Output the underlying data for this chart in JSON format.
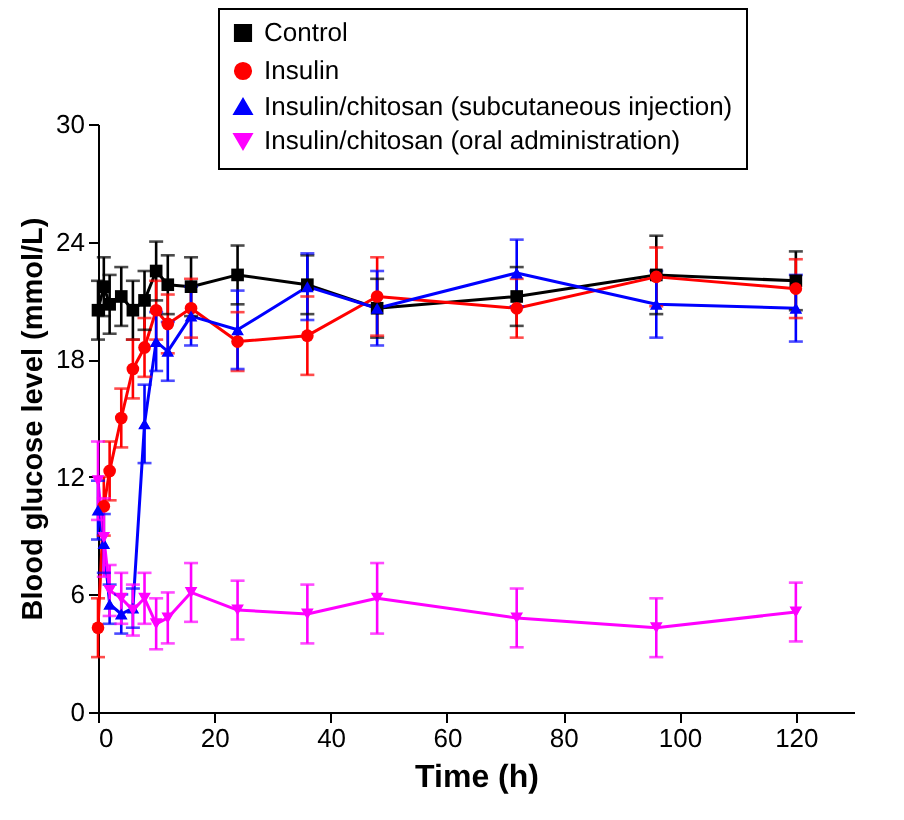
{
  "chart_data": {
    "type": "line",
    "xlabel": "Time (h)",
    "ylabel": "Blood glucose level (mmol/L)",
    "x": [
      0,
      1,
      2,
      4,
      6,
      8,
      10,
      12,
      16,
      24,
      36,
      48,
      72,
      96,
      120
    ],
    "xlim": [
      0,
      130
    ],
    "xticks": [
      0,
      20,
      40,
      60,
      80,
      100,
      120
    ],
    "ylim": [
      0,
      30
    ],
    "yticks": [
      0,
      6,
      12,
      18,
      24,
      30
    ],
    "grid": false,
    "legend": "top right",
    "line_style": "solid",
    "series": [
      {
        "name": "Control",
        "color": "#000000",
        "marker": "square",
        "values": [
          20.5,
          21.7,
          20.8,
          21.2,
          20.5,
          21.0,
          22.5,
          21.8,
          21.7,
          22.3,
          21.8,
          20.6,
          21.2,
          22.3,
          22.0
        ],
        "errors": [
          1.5,
          1.5,
          1.5,
          1.5,
          1.5,
          1.5,
          1.5,
          1.5,
          1.5,
          1.5,
          1.5,
          1.5,
          1.5,
          2,
          1.5
        ]
      },
      {
        "name": "Insulin",
        "color": "#ff0000",
        "marker": "circle",
        "values": [
          4.3,
          10.5,
          12.3,
          15.0,
          17.5,
          18.6,
          20.5,
          19.8,
          20.6,
          18.9,
          19.2,
          21.2,
          20.6,
          22.2,
          21.6
        ],
        "errors": [
          1.5,
          1.5,
          1.5,
          1.5,
          1.5,
          1.5,
          1.5,
          1.5,
          1.5,
          1.5,
          2,
          2,
          1.5,
          1.5,
          1.5
        ]
      },
      {
        "name": "Insulin/chitosan (subcutaneous injection)",
        "color": "#0000ff",
        "marker": "triangle",
        "values": [
          10.3,
          8.6,
          5.5,
          5.0,
          5.3,
          14.7,
          18.9,
          18.4,
          20.2,
          19.5,
          21.7,
          20.6,
          22.4,
          20.8,
          20.6
        ],
        "errors": [
          1.5,
          1.5,
          1,
          1,
          1,
          2,
          1.5,
          1.5,
          1.5,
          2,
          1.7,
          1.9,
          1.7,
          1.7,
          1.7
        ]
      },
      {
        "name": "Insulin/chitosan (oral administration)",
        "color": "#ff00ff",
        "marker": "triangle-down",
        "values": [
          11.8,
          8.9,
          6.2,
          5.8,
          5.2,
          5.8,
          4.5,
          4.8,
          6.1,
          5.2,
          5.0,
          5.8,
          4.8,
          4.3,
          5.1
        ],
        "errors": [
          2,
          2,
          1.3,
          1.3,
          1.3,
          1.3,
          1.3,
          1.3,
          1.5,
          1.5,
          1.5,
          1.8,
          1.5,
          1.5,
          1.5
        ]
      }
    ]
  }
}
